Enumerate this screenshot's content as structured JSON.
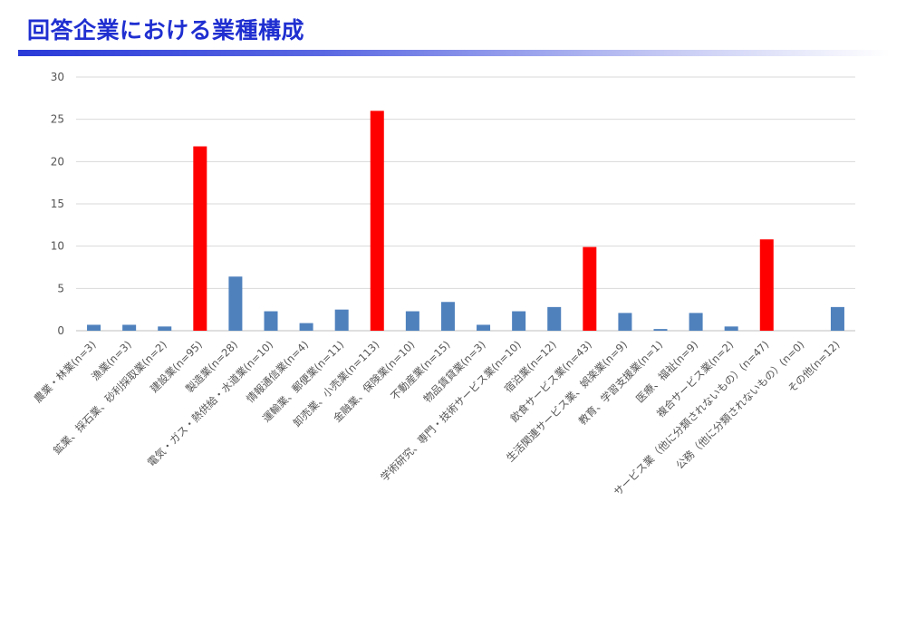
{
  "slide": {
    "title": "回答企業における業種構成"
  },
  "chart_data": {
    "type": "bar",
    "title": "",
    "xlabel": "",
    "ylabel": "",
    "ylim": [
      0,
      30
    ],
    "yticks": [
      0,
      5,
      10,
      15,
      20,
      25,
      30
    ],
    "grid": true,
    "legend": "none",
    "colors": {
      "default": "#4f81bd",
      "highlight": "#ff0000",
      "grid": "#d9d9d9",
      "axis_text": "#555555"
    },
    "categories": [
      "農業・林業(n=3)",
      "漁業(n=3)",
      "鉱業、採石業、砂利採取業(n=2)",
      "建設業(n=95)",
      "製造業(n=28)",
      "電気・ガス・熱供給・水道業(n=10)",
      "情報通信業(n=4)",
      "運輸業、郵便業(n=11)",
      "卸売業、小売業(n=113)",
      "金融業、保険業(n=10)",
      "不動産業(n=15)",
      "物品賃貸業(n=3)",
      "学術研究、専門・技術サービス業(n=10)",
      "宿泊業(n=12)",
      "飲食サービス業(n=43)",
      "生活関連サービス業、娯楽業(n=9)",
      "教育、学習支援業(n=1)",
      "医療、福祉(n=9)",
      "複合サービス業(n=2)",
      "サービス業（他に分類されないもの）(n=47)",
      "公務（他に分類されないもの）(n=0)",
      "その他(n=12)"
    ],
    "values": [
      0.7,
      0.7,
      0.5,
      21.8,
      6.4,
      2.3,
      0.9,
      2.5,
      26.0,
      2.3,
      3.4,
      0.7,
      2.3,
      2.8,
      9.9,
      2.1,
      0.2,
      2.1,
      0.5,
      10.8,
      0,
      2.8
    ],
    "highlighted": [
      false,
      false,
      false,
      true,
      false,
      false,
      false,
      false,
      true,
      false,
      false,
      false,
      false,
      false,
      true,
      false,
      false,
      false,
      false,
      true,
      false,
      false
    ]
  }
}
